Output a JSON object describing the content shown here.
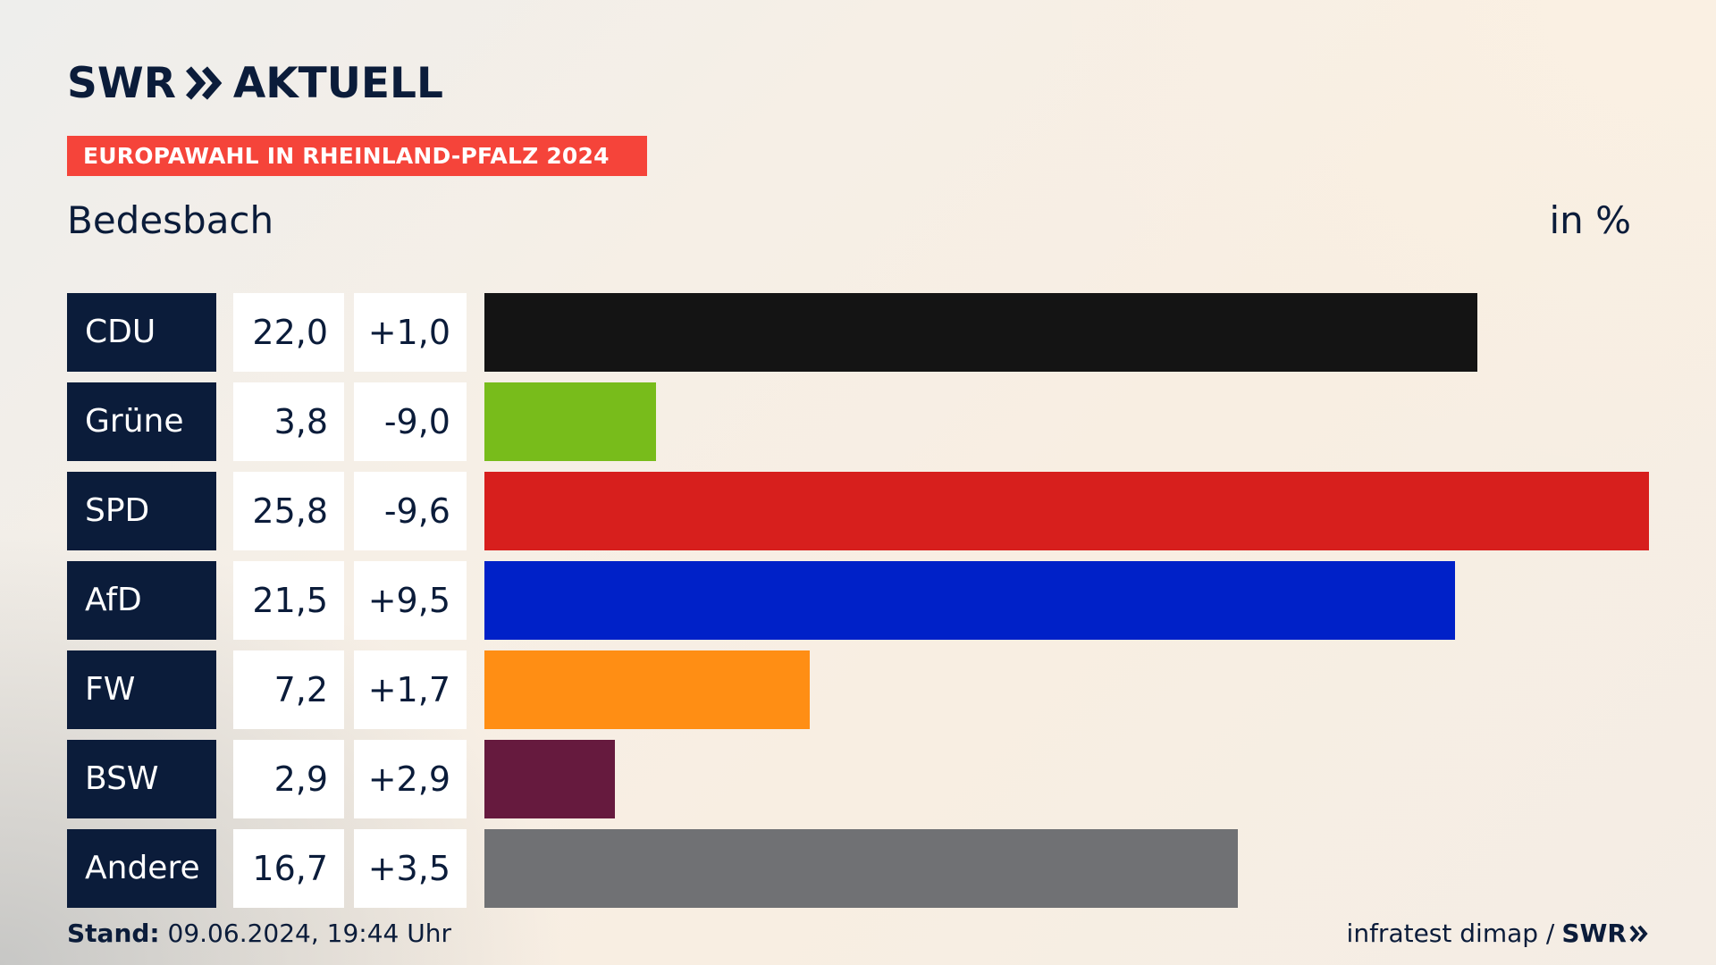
{
  "brand": {
    "name": "SWR",
    "product": "AKTUELL",
    "logo_icon": "double-chevron-right-icon"
  },
  "tagline": "EUROPAWAHL IN RHEINLAND-PFALZ 2024",
  "subtitle": "Bedesbach",
  "unit": "in %",
  "chart_data": {
    "type": "bar",
    "orientation": "horizontal",
    "title": "EUROPAWAHL IN RHEINLAND-PFALZ 2024",
    "subtitle": "Bedesbach",
    "unit": "in %",
    "categories": [
      "CDU",
      "Grüne",
      "SPD",
      "AfD",
      "FW",
      "BSW",
      "Andere"
    ],
    "values": [
      22.0,
      3.8,
      25.8,
      21.5,
      7.2,
      2.9,
      16.7
    ],
    "value_labels": [
      "22,0",
      "3,8",
      "25,8",
      "21,5",
      "7,2",
      "2,9",
      "16,7"
    ],
    "change_labels": [
      "+1,0",
      "-9,0",
      "-9,6",
      "+9,5",
      "+1,7",
      "+2,9",
      "+3,5"
    ],
    "colors": [
      "#141414",
      "#78bc1b",
      "#d71f1d",
      "#0021c8",
      "#ff8e14",
      "#661a3e",
      "#707174"
    ],
    "xlim": [
      0,
      25.8
    ],
    "grid": false,
    "legend": "none"
  },
  "footer": {
    "stand_label": "Stand:",
    "stand_value": "09.06.2024, 19:44 Uhr",
    "source": "infratest dimap /",
    "source_logo": "SWR"
  },
  "colors": {
    "navy": "#0b1c3a",
    "accent_red": "#f5443a",
    "background": "#f8eee2"
  }
}
